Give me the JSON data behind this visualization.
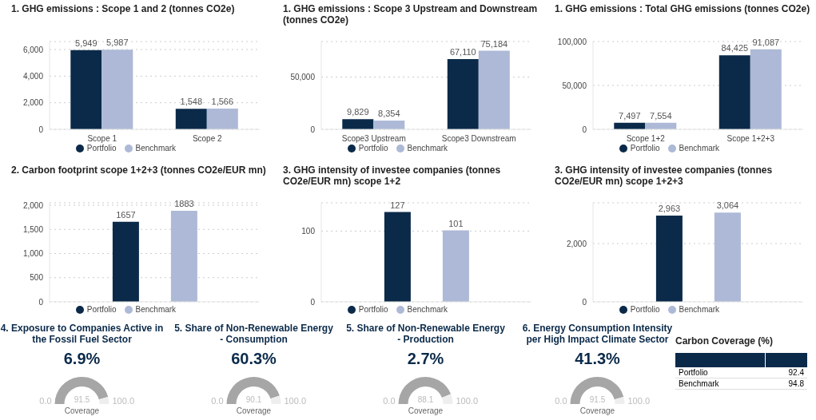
{
  "chart_data": [
    {
      "type": "bar",
      "title": "1. GHG emissions : Scope 1 and 2 (tonnes CO2e)",
      "categories": [
        "Scope 1",
        "Scope 2"
      ],
      "series": [
        {
          "name": "Portfolio",
          "color": "#0b2a4a",
          "values": [
            5949,
            1548
          ],
          "value_labels": [
            "5,949",
            "1,548"
          ]
        },
        {
          "name": "Benchmark",
          "color": "#adb9d6",
          "values": [
            5987,
            1566
          ],
          "value_labels": [
            "5,987",
            "1,566"
          ]
        }
      ],
      "ylim": [
        0,
        6600
      ],
      "yticks": [
        0,
        {
          "value": 2000,
          "label": "2,000"
        },
        {
          "value": 4000,
          "label": "4,000"
        },
        {
          "value": 6000,
          "label": "6,000"
        }
      ],
      "grid": "y",
      "legend": "bottom"
    },
    {
      "type": "bar",
      "title": "1. GHG emissions : Scope 3 Upstream and Downstream (tonnes CO2e)",
      "categories": [
        "Scope3 Upstream",
        "Scope3 Downstream"
      ],
      "series": [
        {
          "name": "Portfolio",
          "color": "#0b2a4a",
          "values": [
            9829,
            67110
          ],
          "value_labels": [
            "9,829",
            "67,110"
          ]
        },
        {
          "name": "Benchmark",
          "color": "#adb9d6",
          "values": [
            8354,
            75184
          ],
          "value_labels": [
            "8,354",
            "75,184"
          ]
        }
      ],
      "ylim": [
        0,
        84000
      ],
      "yticks": [
        0,
        {
          "value": 50000,
          "label": "50,000"
        }
      ],
      "grid": "y",
      "legend": "bottom"
    },
    {
      "type": "bar",
      "title": "1. GHG emissions : Total GHG emissions (tonnes CO2e)",
      "categories": [
        "Scope 1+2",
        "Scope 1+2+3"
      ],
      "series": [
        {
          "name": "Portfolio",
          "color": "#0b2a4a",
          "values": [
            7497,
            84425
          ],
          "value_labels": [
            "7,497",
            "84,425"
          ]
        },
        {
          "name": "Benchmark",
          "color": "#adb9d6",
          "values": [
            7554,
            91087
          ],
          "value_labels": [
            "7,554",
            "91,087"
          ]
        }
      ],
      "ylim": [
        0,
        100000
      ],
      "yticks": [
        0,
        {
          "value": 50000,
          "label": "50,000"
        },
        {
          "value": 100000,
          "label": "100,000"
        }
      ],
      "grid": "y",
      "legend": "bottom"
    },
    {
      "type": "bar",
      "title": "2. Carbon footprint scope 1+2+3 (tonnes CO2e/EUR mn)",
      "categories": [
        null
      ],
      "series": [
        {
          "name": "Portfolio",
          "color": "#0b2a4a",
          "values": [
            1657
          ],
          "value_labels": [
            "1657"
          ]
        },
        {
          "name": "Benchmark",
          "color": "#adb9d6",
          "values": [
            1883
          ],
          "value_labels": [
            "1883"
          ]
        }
      ],
      "ylim": [
        0,
        2050
      ],
      "yticks": [
        0,
        500,
        {
          "value": 1000,
          "label": "1,000"
        },
        {
          "value": 1500,
          "label": "1,500"
        },
        {
          "value": 2000,
          "label": "2,000"
        }
      ],
      "grid": "y",
      "legend": "bottom"
    },
    {
      "type": "bar",
      "title": "3. GHG intensity of investee companies (tonnes CO2e/EUR mn) scope 1+2",
      "categories": [
        null
      ],
      "series": [
        {
          "name": "Portfolio",
          "color": "#0b2a4a",
          "values": [
            127
          ],
          "value_labels": [
            "127"
          ]
        },
        {
          "name": "Benchmark",
          "color": "#adb9d6",
          "values": [
            101
          ],
          "value_labels": [
            "101"
          ]
        }
      ],
      "ylim": [
        0,
        140
      ],
      "yticks": [
        0,
        100
      ],
      "grid": "y",
      "legend": "bottom"
    },
    {
      "type": "bar",
      "title": "3. GHG intensity of investee companies (tonnes CO2e/EUR mn) scope 1+2+3",
      "categories": [
        null
      ],
      "series": [
        {
          "name": "Portfolio",
          "color": "#0b2a4a",
          "values": [
            2963
          ],
          "value_labels": [
            "2,963"
          ]
        },
        {
          "name": "Benchmark",
          "color": "#adb9d6",
          "values": [
            3064
          ],
          "value_labels": [
            "3,064"
          ]
        }
      ],
      "ylim": [
        0,
        3400
      ],
      "yticks": [
        0,
        {
          "value": 2000,
          "label": "2,000"
        }
      ],
      "grid": "y",
      "legend": "bottom"
    },
    {
      "type": "donut",
      "title": "4. Exposure to Companies Active in the Fossil Fuel Sector",
      "subtitle": "6.9%",
      "categories": [
        "Coverage",
        null
      ],
      "values": [
        91.5,
        8.5
      ],
      "value_labels": [
        "91.5",
        null
      ],
      "colors": [
        "#a6a6a6",
        "#eeeeee"
      ],
      "annotations": [
        "0.0",
        "100.0"
      ]
    },
    {
      "type": "donut",
      "title": "5. Share of Non-Renewable Energy - Consumption",
      "subtitle": "60.3%",
      "categories": [
        "Coverage",
        null
      ],
      "values": [
        90.1,
        9.9
      ],
      "value_labels": [
        "90.1",
        null
      ],
      "colors": [
        "#a6a6a6",
        "#eeeeee"
      ],
      "annotations": [
        "0.0",
        "100.0"
      ]
    },
    {
      "type": "donut",
      "title": "5. Share of Non-Renewable Energy - Production",
      "subtitle": "2.7%",
      "categories": [
        "Coverage",
        null
      ],
      "values": [
        88.1,
        11.9
      ],
      "value_labels": [
        "88.1",
        null
      ],
      "colors": [
        "#a6a6a6",
        "#eeeeee"
      ],
      "annotations": [
        "0.0",
        "100.0"
      ]
    },
    {
      "type": "donut",
      "title": "6. Energy Consumption Intensity per High Impact Climate Sector",
      "subtitle": "41.3%",
      "categories": [
        "Coverage",
        null
      ],
      "values": [
        91.5,
        8.5
      ],
      "value_labels": [
        "91.5",
        null
      ],
      "colors": [
        "#a6a6a6",
        "#eeeeee"
      ],
      "annotations": [
        "0.0",
        "100.0"
      ]
    },
    {
      "type": "other",
      "title": "Carbon Coverage (%)",
      "categories": [
        "Portfolio",
        "Benchmark"
      ],
      "values": [
        92.4,
        94.8
      ],
      "data_labels": true
    }
  ]
}
